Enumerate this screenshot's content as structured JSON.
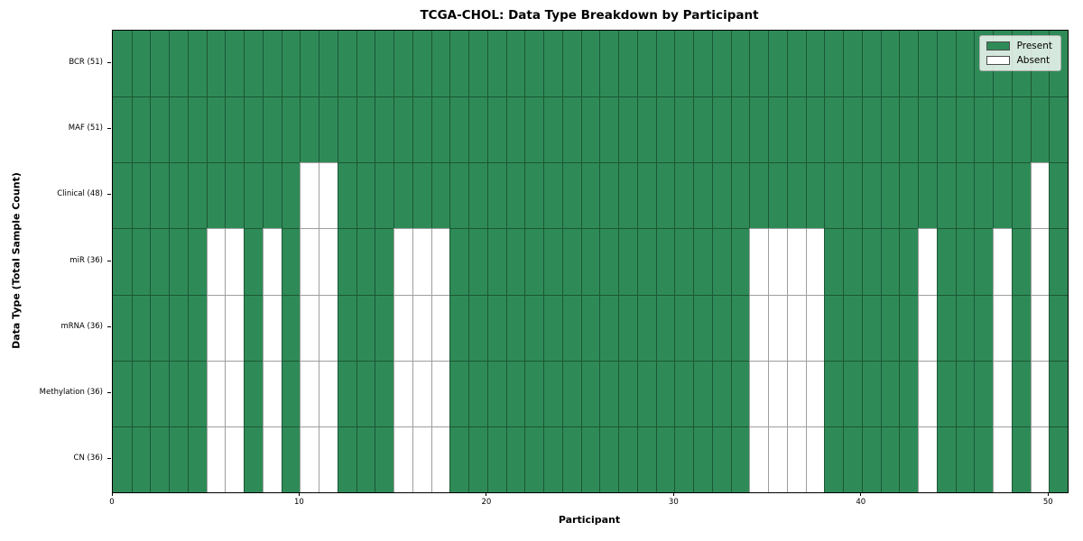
{
  "chart_data": {
    "type": "heatmap",
    "title": "TCGA-CHOL: Data Type Breakdown by Participant",
    "xlabel": "Participant",
    "ylabel": "Data Type (Total Sample Count)",
    "n_participants": 51,
    "x_range": [
      0,
      51
    ],
    "x_ticks": [
      0,
      10,
      20,
      30,
      40,
      50
    ],
    "grid": true,
    "present_color": "#2e8b57",
    "absent_color": "#ffffff",
    "legend": {
      "position": "upper right",
      "entries": [
        {
          "label": "Present",
          "color": "#2e8b57"
        },
        {
          "label": "Absent",
          "color": "#ffffff"
        }
      ]
    },
    "rows": [
      {
        "label": "BCR (51)",
        "data_type": "BCR",
        "total_samples": 51,
        "absent_participants": []
      },
      {
        "label": "MAF (51)",
        "data_type": "MAF",
        "total_samples": 51,
        "absent_participants": []
      },
      {
        "label": "Clinical (48)",
        "data_type": "Clinical",
        "total_samples": 48,
        "absent_participants": [
          10,
          11,
          49
        ]
      },
      {
        "label": "miR (36)",
        "data_type": "miR",
        "total_samples": 36,
        "absent_participants": [
          5,
          6,
          8,
          10,
          11,
          15,
          16,
          17,
          34,
          35,
          36,
          37,
          43,
          47,
          49
        ]
      },
      {
        "label": "mRNA (36)",
        "data_type": "mRNA",
        "total_samples": 36,
        "absent_participants": [
          5,
          6,
          8,
          10,
          11,
          15,
          16,
          17,
          34,
          35,
          36,
          37,
          43,
          47,
          49
        ]
      },
      {
        "label": "Methylation (36)",
        "data_type": "Methylation",
        "total_samples": 36,
        "absent_participants": [
          5,
          6,
          8,
          10,
          11,
          15,
          16,
          17,
          34,
          35,
          36,
          37,
          43,
          47,
          49
        ]
      },
      {
        "label": "CN (36)",
        "data_type": "CN",
        "total_samples": 36,
        "absent_participants": [
          5,
          6,
          8,
          10,
          11,
          15,
          16,
          17,
          34,
          35,
          36,
          37,
          43,
          47,
          49
        ]
      }
    ]
  }
}
